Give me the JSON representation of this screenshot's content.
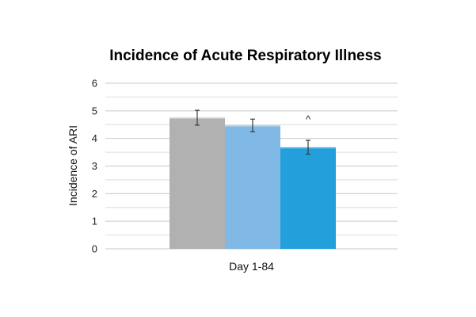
{
  "chart_data": {
    "type": "bar",
    "title": "Incidence of Acute Respiratory Illness",
    "xlabel": "",
    "ylabel": "Incidence of ARI",
    "categories": [
      "Day 1-84"
    ],
    "ylim": [
      0,
      6
    ],
    "yticks": [
      0,
      1,
      2,
      3,
      4,
      5,
      6
    ],
    "grid": true,
    "series": [
      {
        "color": "#b1b1b1",
        "values": [
          4.75
        ],
        "error": [
          0.27
        ]
      },
      {
        "color": "#80b9e6",
        "values": [
          4.47
        ],
        "error": [
          0.23
        ]
      },
      {
        "color": "#239fdb",
        "values": [
          3.68
        ],
        "error": [
          0.25
        ]
      }
    ],
    "annotations": [
      {
        "text": "^",
        "series_index": 2
      }
    ]
  }
}
